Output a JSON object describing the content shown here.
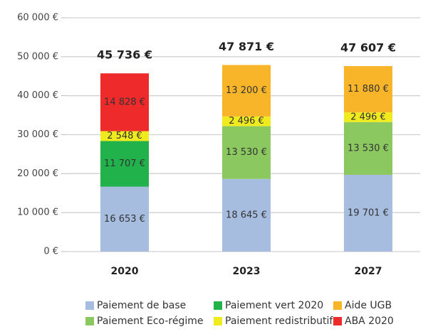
{
  "chart_data": {
    "type": "stacked_bar",
    "categories": [
      "2020",
      "2023",
      "2027"
    ],
    "series": [
      {
        "name": "Paiement de base",
        "color": "#a6bde0",
        "values": [
          16653,
          18645,
          19701
        ],
        "value_labels": [
          "16 653 €",
          "18 645 €",
          "19 701 €"
        ]
      },
      {
        "name": "Paiement vert 2020",
        "color": "#22b24c",
        "values": [
          11707,
          null,
          null
        ],
        "value_labels": [
          "11 707 €",
          null,
          null
        ]
      },
      {
        "name": "Paiement Eco-régime",
        "color": "#8cc860",
        "values": [
          null,
          13530,
          13530
        ],
        "value_labels": [
          null,
          "13 530 €",
          "13 530 €"
        ]
      },
      {
        "name": "Paiement redistributif",
        "color": "#f0eb1e",
        "values": [
          2548,
          2496,
          2496
        ],
        "value_labels": [
          "2 548 €",
          "2 496 €",
          "2 496 €"
        ]
      },
      {
        "name": "Aide UGB",
        "color": "#f9b52a",
        "values": [
          null,
          13200,
          11880
        ],
        "value_labels": [
          null,
          "13 200 €",
          "11 880 €"
        ]
      },
      {
        "name": "ABA 2020",
        "color": "#ee2a2a",
        "values": [
          14828,
          null,
          null
        ],
        "value_labels": [
          "14 828 €",
          null,
          null
        ]
      }
    ],
    "totals": [
      45736,
      47871,
      47607
    ],
    "total_labels": [
      "45 736 €",
      "47 871 €",
      "47 607 €"
    ],
    "ylim": [
      0,
      60000
    ],
    "yticks": [
      {
        "value": 0,
        "label": "0 €"
      },
      {
        "value": 10000,
        "label": "10 000 €"
      },
      {
        "value": 20000,
        "label": "20 000 €"
      },
      {
        "value": 30000,
        "label": "30 000 €"
      },
      {
        "value": 40000,
        "label": "40 000 €"
      },
      {
        "value": 50000,
        "label": "50 000 €"
      },
      {
        "value": 60000,
        "label": "60 000 €"
      }
    ],
    "grid": true
  }
}
